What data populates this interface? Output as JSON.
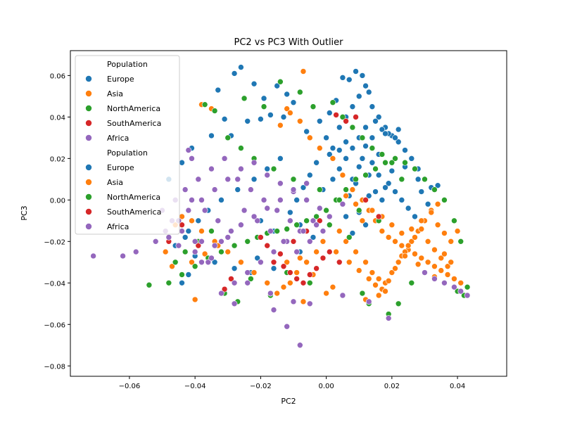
{
  "chart_data": {
    "type": "scatter",
    "title": "PC2 vs PC3 With Outlier",
    "xlabel": "PC2",
    "ylabel": "PC3",
    "xlim": [
      -0.078,
      0.055
    ],
    "ylim": [
      -0.085,
      0.072
    ],
    "xticks": [
      -0.06,
      -0.04,
      -0.02,
      0.0,
      0.02,
      0.04
    ],
    "xtick_labels": [
      "−0.06",
      "−0.04",
      "−0.02",
      "0.00",
      "0.02",
      "0.04"
    ],
    "yticks": [
      -0.08,
      -0.06,
      -0.04,
      -0.02,
      0.0,
      0.02,
      0.04,
      0.06
    ],
    "ytick_labels": [
      "−0.08",
      "−0.06",
      "−0.04",
      "−0.02",
      "0.00",
      "0.02",
      "0.04",
      "0.06"
    ],
    "grid": false,
    "legend_position": "top-left",
    "legend": {
      "groups": [
        {
          "title": "Population",
          "entries": [
            "Europe",
            "Asia",
            "NorthAmerica",
            "SouthAmerica",
            "Africa"
          ]
        },
        {
          "title": "Population",
          "entries": [
            "Europe",
            "Asia",
            "NorthAmerica",
            "SouthAmerica",
            "Africa"
          ]
        }
      ]
    },
    "colors": {
      "Europe": "#1f77b4",
      "Asia": "#ff7f0e",
      "NorthAmerica": "#2ca02c",
      "SouthAmerica": "#d62728",
      "Africa": "#9467bd"
    },
    "series": [
      {
        "name": "Europe",
        "x": [
          -0.026,
          -0.028,
          -0.033,
          -0.022,
          -0.019,
          -0.015,
          -0.012,
          -0.01,
          -0.017,
          -0.013,
          -0.02,
          -0.024,
          -0.031,
          -0.035,
          -0.041,
          -0.044,
          -0.048,
          -0.045,
          -0.042,
          -0.038,
          -0.03,
          -0.026,
          -0.021,
          -0.016,
          -0.012,
          -0.008,
          -0.004,
          0.0,
          0.002,
          0.004,
          0.006,
          0.008,
          0.01,
          0.012,
          0.014,
          0.016,
          0.018,
          0.02,
          0.022,
          0.024,
          0.026,
          0.028,
          0.03,
          0.032,
          0.034,
          0.009,
          0.011,
          0.005,
          0.007,
          0.013,
          0.003,
          0.015,
          0.017,
          0.019,
          0.021,
          0.001,
          -0.002,
          -0.006,
          0.008,
          0.01,
          0.012,
          0.014,
          0.006,
          0.004,
          0.016,
          0.018,
          0.02,
          0.002,
          -0.001,
          0.011,
          0.013,
          0.009,
          0.007,
          0.005,
          0.015,
          0.017,
          0.003,
          0.019,
          0.021,
          0.023,
          0.025,
          0.027,
          -0.003,
          -0.005,
          -0.007,
          -0.009,
          -0.011,
          0.001,
          0.012,
          0.01,
          0.014,
          0.008,
          0.016,
          0.018,
          0.006,
          0.004,
          -0.014,
          -0.018,
          -0.022,
          -0.027,
          -0.032,
          -0.036,
          -0.039,
          -0.043,
          -0.046,
          -0.04,
          -0.034,
          -0.028,
          -0.023,
          0.01,
          0.012,
          0.008,
          0.013,
          0.006,
          -0.008,
          -0.016,
          -0.02,
          -0.044,
          -0.042,
          -0.029,
          0.024,
          0.028,
          0.029,
          0.031,
          0.022,
          0.018
        ],
        "y": [
          0.064,
          0.061,
          0.053,
          0.056,
          0.049,
          0.055,
          0.051,
          0.047,
          0.041,
          0.04,
          0.039,
          0.038,
          0.039,
          0.031,
          0.025,
          0.018,
          0.01,
          -0.01,
          -0.015,
          -0.02,
          -0.025,
          -0.03,
          -0.028,
          -0.033,
          -0.03,
          -0.025,
          -0.018,
          0.03,
          0.025,
          0.035,
          0.04,
          0.045,
          0.05,
          0.055,
          0.045,
          0.04,
          0.035,
          0.031,
          0.028,
          0.024,
          0.02,
          0.015,
          0.01,
          0.006,
          0.007,
          0.062,
          0.06,
          0.059,
          0.058,
          0.052,
          0.048,
          0.038,
          0.034,
          0.032,
          0.03,
          0.042,
          0.038,
          0.033,
          0.025,
          0.03,
          0.035,
          0.03,
          0.02,
          0.015,
          0.022,
          0.018,
          0.014,
          0.01,
          0.005,
          0.02,
          0.012,
          0.008,
          0.002,
          -0.002,
          0.004,
          0.0,
          0.0,
          0.008,
          0.004,
          0.0,
          -0.004,
          -0.008,
          0.018,
          0.012,
          0.006,
          0.0,
          -0.006,
          0.022,
          0.026,
          0.016,
          0.018,
          0.01,
          0.012,
          0.006,
          0.028,
          0.024,
          0.02,
          0.015,
          0.01,
          0.005,
          0.0,
          -0.005,
          -0.01,
          -0.018,
          -0.022,
          -0.027,
          -0.03,
          -0.033,
          -0.035,
          -0.006,
          -0.012,
          -0.016,
          0.002,
          -0.008,
          -0.012,
          -0.015,
          -0.01,
          -0.04,
          -0.036,
          0.031,
          0.016,
          0.01,
          0.004,
          -0.002,
          0.034,
          0.032
        ]
      },
      {
        "name": "Asia",
        "x": [
          -0.007,
          -0.012,
          -0.011,
          -0.014,
          -0.008,
          -0.005,
          -0.002,
          0.002,
          0.005,
          0.008,
          0.011,
          0.013,
          0.015,
          0.017,
          0.019,
          0.021,
          0.023,
          0.025,
          0.027,
          0.029,
          0.031,
          0.033,
          0.035,
          0.037,
          0.039,
          0.041,
          0.004,
          0.006,
          0.009,
          0.012,
          0.014,
          0.016,
          0.018,
          0.02,
          0.022,
          0.024,
          0.026,
          0.028,
          0.03,
          0.032,
          0.034,
          0.036,
          0.038,
          0.04,
          0.003,
          0.007,
          0.01,
          0.013,
          0.015,
          0.017,
          0.019,
          0.021,
          0.023,
          0.025,
          0.027,
          0.029,
          0.031,
          0.033,
          0.035,
          0.037,
          -0.001,
          -0.003,
          -0.006,
          -0.009,
          -0.011,
          -0.013,
          -0.015,
          -0.018,
          -0.022,
          -0.026,
          -0.03,
          -0.034,
          -0.038,
          -0.041,
          -0.044,
          -0.046,
          -0.048,
          -0.049,
          -0.047,
          -0.044,
          -0.041,
          -0.037,
          -0.033,
          -0.03,
          -0.035,
          -0.038,
          -0.012,
          -0.007,
          -0.04,
          0.011,
          0.014,
          0.009,
          0.006,
          0.017,
          0.02,
          0.023,
          0.026,
          0.029,
          0.032,
          0.034,
          0.024,
          0.028,
          0.03,
          0.036,
          0.038,
          0.033,
          0.002,
          0.0,
          -0.004,
          -0.008,
          0.012,
          0.016,
          0.018
        ],
        "y": [
          0.062,
          0.044,
          0.042,
          0.036,
          0.038,
          0.03,
          0.025,
          0.02,
          0.012,
          0.005,
          0.0,
          -0.005,
          -0.01,
          -0.015,
          -0.018,
          -0.02,
          -0.022,
          -0.024,
          -0.026,
          -0.028,
          -0.03,
          -0.032,
          -0.034,
          -0.036,
          -0.038,
          -0.04,
          -0.015,
          -0.02,
          -0.025,
          -0.03,
          -0.035,
          -0.038,
          -0.04,
          -0.035,
          -0.03,
          -0.025,
          -0.02,
          -0.015,
          -0.01,
          -0.005,
          -0.012,
          -0.016,
          -0.02,
          -0.015,
          -0.025,
          -0.03,
          -0.034,
          -0.038,
          -0.041,
          -0.043,
          -0.039,
          -0.033,
          -0.027,
          -0.022,
          -0.018,
          -0.014,
          -0.02,
          -0.024,
          -0.028,
          -0.032,
          -0.02,
          -0.025,
          -0.03,
          -0.035,
          -0.04,
          -0.042,
          -0.045,
          -0.04,
          -0.035,
          -0.03,
          -0.025,
          -0.02,
          -0.015,
          -0.01,
          -0.008,
          -0.012,
          -0.018,
          -0.025,
          -0.032,
          -0.036,
          -0.03,
          -0.026,
          -0.022,
          -0.018,
          0.044,
          0.046,
          -0.03,
          -0.049,
          -0.048,
          -0.01,
          -0.005,
          -0.002,
          0.002,
          -0.008,
          -0.012,
          -0.016,
          -0.014,
          -0.01,
          -0.006,
          -0.002,
          -0.027,
          -0.031,
          -0.035,
          -0.026,
          -0.03,
          -0.037,
          -0.042,
          -0.045,
          -0.036,
          -0.028,
          -0.048,
          -0.046,
          -0.044
        ]
      },
      {
        "name": "NorthAmerica",
        "x": [
          -0.054,
          -0.048,
          -0.044,
          -0.04,
          -0.036,
          -0.032,
          -0.028,
          -0.024,
          -0.021,
          -0.018,
          -0.015,
          -0.012,
          -0.009,
          -0.006,
          -0.003,
          0.0,
          0.003,
          0.006,
          0.009,
          0.012,
          0.015,
          0.018,
          0.021,
          0.024,
          0.027,
          0.03,
          0.033,
          0.036,
          0.039,
          0.041,
          0.042,
          -0.037,
          -0.034,
          -0.025,
          -0.019,
          -0.014,
          -0.008,
          -0.004,
          0.002,
          0.005,
          0.008,
          0.011,
          0.014,
          0.017,
          0.02,
          0.023,
          -0.03,
          -0.026,
          -0.022,
          -0.016,
          -0.01,
          -0.002,
          0.004,
          0.01,
          0.016,
          -0.02,
          -0.012,
          0.013,
          -0.046,
          -0.043,
          -0.039,
          -0.035,
          0.001,
          0.007,
          -0.023,
          -0.017,
          -0.027,
          -0.031,
          -0.005,
          0.011,
          0.019,
          0.022,
          0.026,
          0.04,
          0.043
        ],
        "y": [
          -0.041,
          -0.04,
          -0.036,
          -0.032,
          -0.028,
          -0.025,
          -0.022,
          -0.02,
          -0.018,
          -0.016,
          -0.015,
          -0.014,
          -0.012,
          -0.01,
          -0.008,
          -0.005,
          0.0,
          0.005,
          0.01,
          0.012,
          0.015,
          0.018,
          0.02,
          0.018,
          0.015,
          0.01,
          0.005,
          0.0,
          -0.01,
          -0.02,
          -0.046,
          0.046,
          0.043,
          0.049,
          0.045,
          0.057,
          0.052,
          0.045,
          0.047,
          0.04,
          0.035,
          0.03,
          0.025,
          0.022,
          0.018,
          0.01,
          0.03,
          0.025,
          0.02,
          0.015,
          0.01,
          0.005,
          0.0,
          -0.005,
          -0.01,
          -0.03,
          -0.035,
          -0.05,
          -0.03,
          -0.025,
          -0.02,
          -0.015,
          -0.012,
          -0.018,
          -0.038,
          -0.046,
          -0.049,
          -0.045,
          -0.04,
          -0.045,
          -0.055,
          -0.05,
          -0.04,
          -0.044,
          -0.042
        ]
      },
      {
        "name": "SouthAmerica",
        "x": [
          -0.031,
          -0.029,
          -0.016,
          -0.013,
          -0.011,
          -0.009,
          -0.007,
          -0.005,
          -0.003,
          -0.001,
          0.001,
          0.004,
          0.006,
          0.009,
          -0.018,
          -0.02,
          -0.014,
          -0.01,
          -0.006,
          -0.002,
          0.003,
          -0.044,
          -0.048,
          -0.039,
          0.012,
          0.016
        ],
        "y": [
          -0.043,
          -0.038,
          -0.03,
          -0.032,
          -0.035,
          -0.038,
          -0.04,
          -0.036,
          -0.033,
          -0.028,
          -0.025,
          -0.03,
          0.038,
          0.04,
          -0.022,
          -0.018,
          -0.026,
          -0.02,
          -0.015,
          -0.01,
          0.041,
          -0.012,
          -0.02,
          -0.022,
          0.0,
          -0.008
        ]
      },
      {
        "name": "Africa",
        "x": [
          -0.071,
          -0.062,
          -0.058,
          -0.052,
          -0.049,
          -0.045,
          -0.042,
          -0.038,
          -0.034,
          -0.03,
          -0.026,
          -0.022,
          -0.018,
          -0.014,
          -0.01,
          -0.006,
          -0.002,
          -0.004,
          -0.008,
          -0.012,
          -0.016,
          -0.02,
          -0.024,
          -0.028,
          -0.032,
          -0.036,
          -0.04,
          -0.044,
          -0.047,
          -0.05,
          -0.046,
          -0.043,
          -0.039,
          -0.035,
          -0.031,
          -0.027,
          -0.023,
          -0.019,
          -0.015,
          -0.011,
          -0.007,
          -0.003,
          0.001,
          0.005,
          -0.025,
          -0.021,
          -0.017,
          -0.013,
          -0.009,
          -0.005,
          -0.001,
          -0.029,
          -0.033,
          -0.037,
          -0.041,
          -0.038,
          -0.034,
          -0.03,
          -0.026,
          -0.022,
          -0.018,
          -0.014,
          -0.01,
          -0.006,
          -0.016,
          -0.012,
          -0.008,
          -0.02,
          -0.024,
          -0.028,
          -0.041,
          -0.042,
          -0.017,
          -0.01,
          -0.005,
          0.005,
          0.013,
          0.019,
          0.03,
          0.033,
          0.036,
          0.039,
          0.041,
          0.043,
          -0.04,
          -0.038,
          -0.035,
          -0.032,
          -0.048,
          -0.045
        ],
        "y": [
          -0.027,
          -0.027,
          -0.025,
          -0.02,
          -0.015,
          -0.01,
          -0.005,
          0.0,
          0.005,
          0.01,
          0.015,
          0.018,
          0.012,
          0.008,
          0.004,
          0.0,
          -0.004,
          -0.01,
          -0.015,
          -0.02,
          -0.025,
          -0.03,
          -0.035,
          -0.04,
          -0.045,
          -0.03,
          -0.02,
          -0.015,
          -0.01,
          -0.005,
          0.0,
          0.005,
          0.01,
          0.015,
          0.02,
          0.01,
          0.005,
          0.0,
          -0.005,
          -0.01,
          -0.015,
          -0.012,
          -0.008,
          -0.002,
          -0.005,
          -0.01,
          -0.015,
          -0.02,
          -0.025,
          -0.02,
          -0.015,
          -0.015,
          -0.01,
          -0.005,
          0.0,
          -0.02,
          -0.022,
          -0.018,
          -0.012,
          -0.008,
          -0.004,
          0.0,
          0.005,
          0.008,
          -0.053,
          -0.061,
          -0.07,
          -0.03,
          -0.04,
          -0.05,
          0.02,
          0.024,
          -0.045,
          -0.049,
          -0.05,
          -0.046,
          -0.049,
          -0.057,
          -0.035,
          -0.038,
          -0.04,
          -0.042,
          -0.044,
          -0.046,
          -0.025,
          -0.03,
          -0.028,
          -0.02,
          -0.018,
          -0.022
        ]
      }
    ]
  }
}
